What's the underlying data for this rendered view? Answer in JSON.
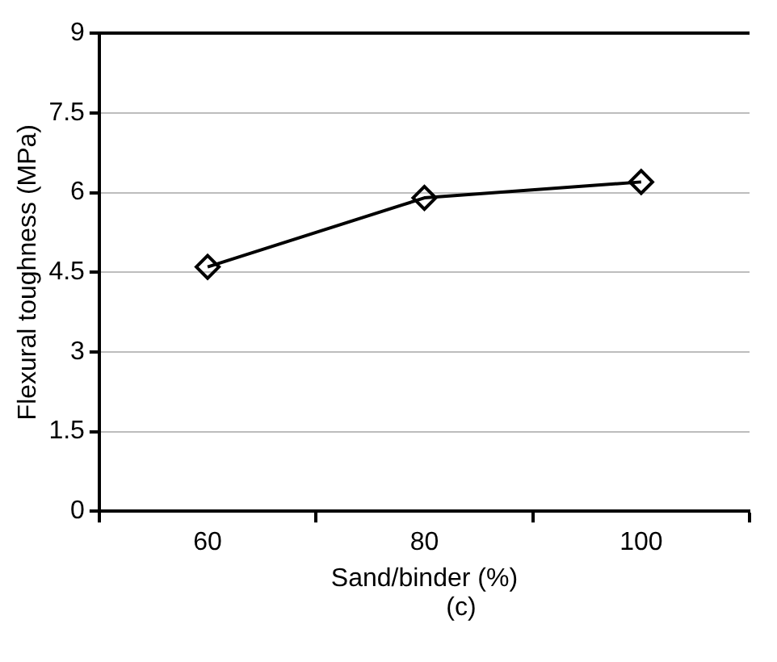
{
  "chart_data": {
    "type": "line",
    "categories": [
      "60",
      "80",
      "100"
    ],
    "series": [
      {
        "color": "#000000",
        "values": [
          4.6,
          5.9,
          6.2
        ]
      }
    ],
    "xlabel": "Sand/binder (%)",
    "ylabel": "Flexural toughness (MPa)",
    "ylim": [
      0,
      9
    ],
    "yticks": [
      0,
      1.5,
      3,
      4.5,
      6,
      7.5,
      9
    ],
    "grid": "y",
    "marker": "diamond",
    "line_style": "solid",
    "legend": false,
    "annotations": [
      "(c)"
    ]
  }
}
